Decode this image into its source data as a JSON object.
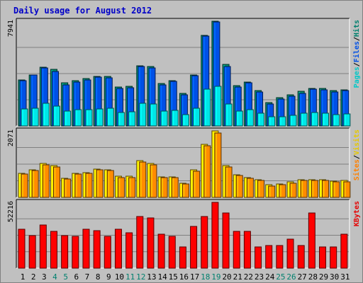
{
  "title": "Daily usage for August 2012",
  "chart_data": [
    {
      "type": "bar",
      "panel": "top",
      "y_max_label": "7941",
      "ylim": [
        0,
        7941
      ],
      "legend": [
        {
          "label": "Pages",
          "color": "#00c8c8"
        },
        {
          "label": "/",
          "color": "#000000"
        },
        {
          "label": "Files",
          "color": "#0050e6"
        },
        {
          "label": "/",
          "color": "#000000"
        },
        {
          "label": "Hits",
          "color": "#00806e"
        }
      ],
      "categories": [
        "1",
        "2",
        "3",
        "4",
        "5",
        "6",
        "7",
        "8",
        "9",
        "10",
        "11",
        "12",
        "13",
        "14",
        "15",
        "16",
        "17",
        "18",
        "19",
        "20",
        "21",
        "22",
        "23",
        "24",
        "25",
        "26",
        "27",
        "28",
        "29",
        "30",
        "31"
      ],
      "series": [
        {
          "name": "Hits",
          "color": "#008c6e",
          "values": [
            3490,
            3870,
            4480,
            4290,
            3250,
            3460,
            3620,
            3780,
            3780,
            2940,
            2980,
            4570,
            4520,
            3200,
            3460,
            2480,
            3890,
            6850,
            7940,
            4670,
            3060,
            3350,
            2690,
            1790,
            2130,
            2340,
            2610,
            2870,
            2870,
            2660,
            2760
          ]
        },
        {
          "name": "Files",
          "color": "#0050e6",
          "values": [
            3440,
            3840,
            4410,
            4130,
            3120,
            3350,
            3500,
            3710,
            3650,
            2870,
            2920,
            4490,
            4400,
            3110,
            3370,
            2340,
            3820,
            6790,
            7880,
            4530,
            2960,
            3250,
            2600,
            1680,
            2020,
            2250,
            2480,
            2770,
            2740,
            2560,
            2660
          ]
        },
        {
          "name": "Pages",
          "color": "#00e6e6",
          "values": [
            1310,
            1360,
            1700,
            1510,
            1150,
            1230,
            1240,
            1280,
            1340,
            1030,
            1080,
            1740,
            1640,
            1130,
            1190,
            840,
            1340,
            2790,
            3020,
            1670,
            1120,
            1220,
            950,
            690,
            720,
            830,
            970,
            1020,
            980,
            860,
            890
          ]
        }
      ]
    },
    {
      "type": "bar",
      "panel": "middle",
      "y_max_label": "2071",
      "ylim": [
        0,
        2071
      ],
      "legend": [
        {
          "label": "Sites",
          "color": "#ff8000"
        },
        {
          "label": "/",
          "color": "#000000"
        },
        {
          "label": "Visits",
          "color": "#e6c800"
        }
      ],
      "categories": [
        "1",
        "2",
        "3",
        "4",
        "5",
        "6",
        "7",
        "8",
        "9",
        "10",
        "11",
        "12",
        "13",
        "14",
        "15",
        "16",
        "17",
        "18",
        "19",
        "20",
        "21",
        "22",
        "23",
        "24",
        "25",
        "26",
        "27",
        "28",
        "29",
        "30",
        "31"
      ],
      "series": [
        {
          "name": "Visits",
          "color": "#ffd700",
          "values": [
            750,
            860,
            1060,
            1000,
            600,
            760,
            770,
            880,
            860,
            650,
            650,
            1140,
            1060,
            630,
            640,
            430,
            850,
            1650,
            2071,
            990,
            710,
            620,
            560,
            390,
            410,
            480,
            560,
            550,
            560,
            510,
            520
          ]
        },
        {
          "name": "Sites",
          "color": "#ff8c00",
          "values": [
            730,
            830,
            1010,
            950,
            570,
            730,
            740,
            850,
            830,
            620,
            620,
            1100,
            1010,
            610,
            610,
            410,
            810,
            1600,
            2010,
            950,
            680,
            590,
            530,
            360,
            390,
            450,
            530,
            520,
            530,
            490,
            490
          ]
        }
      ]
    },
    {
      "type": "bar",
      "panel": "bottom",
      "y_max_label": "52216",
      "ylim": [
        0,
        52216
      ],
      "legend": [
        {
          "label": "KBytes",
          "color": "#e60000"
        }
      ],
      "categories": [
        "1",
        "2",
        "3",
        "4",
        "5",
        "6",
        "7",
        "8",
        "9",
        "10",
        "11",
        "12",
        "13",
        "14",
        "15",
        "16",
        "17",
        "18",
        "19",
        "20",
        "21",
        "22",
        "23",
        "24",
        "25",
        "26",
        "27",
        "28",
        "29",
        "30",
        "31"
      ],
      "series": [
        {
          "name": "KBytes",
          "color": "#ff0000",
          "values": [
            31000,
            26000,
            34000,
            29000,
            26000,
            25000,
            31000,
            30000,
            25000,
            31000,
            28000,
            41000,
            40000,
            27000,
            25000,
            17000,
            33000,
            41000,
            52216,
            44000,
            29000,
            29000,
            17000,
            18000,
            18000,
            23000,
            18000,
            44000,
            17000,
            17000,
            27000
          ]
        }
      ]
    }
  ],
  "weekend_days": [
    "4",
    "5",
    "11",
    "12",
    "18",
    "19",
    "25",
    "26"
  ],
  "colors": {
    "axis_text": "#000000",
    "weekend_text": "#00806e",
    "plot_bg": "#c0c0c0",
    "gridline": "#808080"
  }
}
